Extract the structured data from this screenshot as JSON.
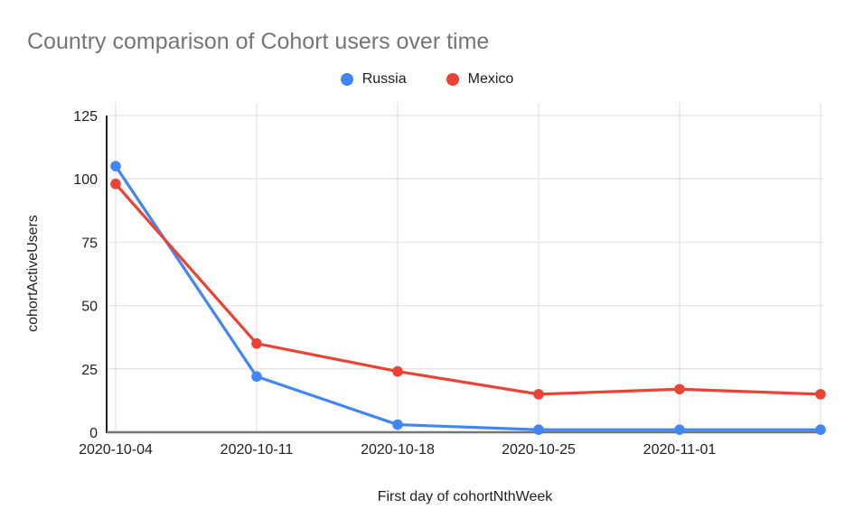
{
  "chart_data": {
    "type": "line",
    "title": "Country comparison of Cohort users over time",
    "xlabel": "First day of cohortNthWeek",
    "ylabel": "cohortActiveUsers",
    "categories": [
      "2020-10-04",
      "2020-10-11",
      "2020-10-18",
      "2020-10-25",
      "2020-11-01",
      ""
    ],
    "y_ticks": [
      0,
      25,
      50,
      75,
      100,
      125
    ],
    "ylim": [
      0,
      125
    ],
    "grid": true,
    "legend_position": "top-center",
    "series": [
      {
        "name": "Russia",
        "color": "#4285F4",
        "values": [
          105,
          22,
          3,
          1,
          1,
          1
        ]
      },
      {
        "name": "Mexico",
        "color": "#EA4335",
        "values": [
          98,
          35,
          24,
          15,
          17,
          15
        ]
      }
    ]
  },
  "colors": {
    "background": "#ffffff",
    "title_text": "#757575",
    "axis_text": "#202124",
    "gridline": "#e3e3e3",
    "y_axis_line": "#212121",
    "x_axis_line": "#757575"
  }
}
